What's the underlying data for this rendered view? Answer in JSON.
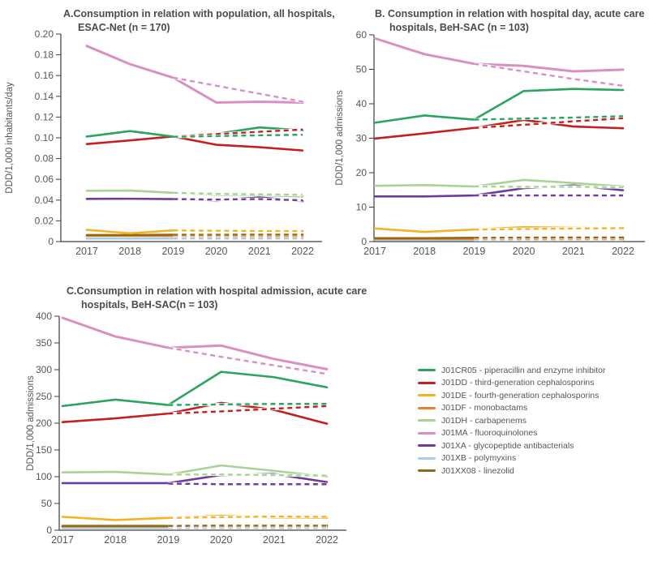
{
  "page": {
    "background": "#ffffff"
  },
  "colors": {
    "J01CR05": "#2aa45f",
    "J01DD": "#c3201f",
    "J01DE": "#f5b324",
    "J01DF": "#ee7e2d",
    "J01DH": "#a7d395",
    "J01MA": "#d98fc3",
    "J01XA": "#6e3a9c",
    "J01XB": "#a9cde9",
    "J01XX08": "#8e6c15",
    "axis_line": "#3d3d3d",
    "axis_text": "#5c564e",
    "title_text": "#4f4a44"
  },
  "legend": {
    "items": [
      {
        "code": "J01CR05",
        "label": "J01CR05 - piperacillin and enzyme inhibitor"
      },
      {
        "code": "J01DD",
        "label": "J01DD - third-generation cephalosporins"
      },
      {
        "code": "J01DE",
        "label": "J01DE - fourth-generation cephalosporins"
      },
      {
        "code": "J01DF",
        "label": "J01DF - monobactams"
      },
      {
        "code": "J01DH",
        "label": "J01DH - carbapenems"
      },
      {
        "code": "J01MA",
        "label": "J01MA - fluoroquinolones"
      },
      {
        "code": "J01XA",
        "label": "J01XA - glycopeptide antibacterials"
      },
      {
        "code": "J01XB",
        "label": "J01XB - polymyxins"
      },
      {
        "code": "J01XX08",
        "label": "J01XX08 - linezolid"
      }
    ]
  },
  "chart_data": [
    {
      "id": "A",
      "type": "line",
      "title_lines": [
        "A.Consumption in relation with population, all hospitals,",
        "ESAC-Net (n = 170)"
      ],
      "ylabel": "DDD/1,000 inhabitants/day",
      "years": [
        2017,
        2018,
        2019,
        2020,
        2021,
        2022
      ],
      "x_labels": [
        "2017",
        "2018",
        "2019",
        "2020",
        "2021",
        "2022"
      ],
      "ylim": [
        0,
        0.2
      ],
      "yticks": [
        "0.20",
        "0.18",
        "0.16",
        "0.14",
        "0.12",
        "0.10",
        "0.08",
        "0.06",
        "0.04",
        "0.02",
        "0"
      ],
      "series": [
        {
          "code": "J01XB",
          "values": [
            0.003,
            0.003,
            0.003,
            0.003,
            0.003,
            0.003
          ]
        },
        {
          "code": "J01DF",
          "values": [
            0.0056,
            0.0056,
            0.0055,
            0.0053,
            0.0052,
            0.0052
          ]
        },
        {
          "code": "J01XX08",
          "values": [
            0.0063,
            0.0063,
            0.0066,
            0.0068,
            0.0068,
            0.0068
          ]
        },
        {
          "code": "J01DE",
          "values": [
            0.0113,
            0.008,
            0.0108,
            0.01,
            0.01,
            0.01
          ]
        },
        {
          "code": "J01DH",
          "values": [
            0.049,
            0.0492,
            0.047,
            0.0452,
            0.0448,
            0.0435
          ]
        },
        {
          "code": "J01XA",
          "values": [
            0.0412,
            0.0413,
            0.041,
            0.0398,
            0.0425,
            0.039
          ]
        },
        {
          "code": "J01DD",
          "values": [
            0.094,
            0.0975,
            0.1013,
            0.0933,
            0.091,
            0.0878
          ]
        },
        {
          "code": "J01CR05",
          "values": [
            0.1012,
            0.1065,
            0.1012,
            0.1038,
            0.11,
            0.1072
          ]
        },
        {
          "code": "J01MA",
          "values": [
            0.1885,
            0.171,
            0.158,
            0.134,
            0.1348,
            0.134
          ]
        }
      ],
      "projected": [
        {
          "code": "J01XB",
          "x_start_index": 2,
          "values": [
            0.003,
            0.003,
            0.003,
            0.003
          ]
        },
        {
          "code": "J01DF",
          "x_start_index": 2,
          "values": [
            0.0055,
            0.0054,
            0.0053,
            0.0052
          ]
        },
        {
          "code": "J01XX08",
          "x_start_index": 2,
          "values": [
            0.0066,
            0.0066,
            0.0067,
            0.0067
          ]
        },
        {
          "code": "J01DE",
          "x_start_index": 2,
          "values": [
            0.0108,
            0.0104,
            0.0102,
            0.0101
          ]
        },
        {
          "code": "J01DH",
          "x_start_index": 2,
          "values": [
            0.047,
            0.046,
            0.0455,
            0.045
          ]
        },
        {
          "code": "J01XA",
          "x_start_index": 2,
          "values": [
            0.041,
            0.0405,
            0.041,
            0.0398
          ]
        },
        {
          "code": "J01DD",
          "x_start_index": 2,
          "values": [
            0.1013,
            0.1036,
            0.1058,
            0.108
          ]
        },
        {
          "code": "J01CR05",
          "x_start_index": 2,
          "values": [
            0.101,
            0.1017,
            0.1024,
            0.103
          ]
        },
        {
          "code": "J01MA",
          "x_start_index": 2,
          "values": [
            0.158,
            0.1502,
            0.1425,
            0.1348
          ]
        }
      ]
    },
    {
      "id": "B",
      "type": "line",
      "title_lines": [
        "B. Consumption in relation with hospital day, acute care",
        "hospitals, BeH-SAC (n = 103)"
      ],
      "ylabel": "DDD/1,000 admissions",
      "years": [
        2017,
        2018,
        2019,
        2020,
        2021,
        2022
      ],
      "x_labels": [
        "2017",
        "2018",
        "2019",
        "2020",
        "2021",
        "2022"
      ],
      "ylim": [
        0,
        60
      ],
      "yticks": [
        "60",
        "50",
        "40",
        "30",
        "20",
        "10",
        "0"
      ],
      "series": [
        {
          "code": "J01XB",
          "values": [
            0.5,
            0.5,
            0.5,
            0.6,
            0.6,
            0.6
          ]
        },
        {
          "code": "J01DF",
          "values": [
            0.8,
            0.8,
            0.8,
            0.75,
            0.7,
            0.7
          ]
        },
        {
          "code": "J01XX08",
          "values": [
            1.0,
            1.0,
            1.1,
            1.25,
            1.2,
            1.2
          ]
        },
        {
          "code": "J01DE",
          "values": [
            3.8,
            2.8,
            3.5,
            4.2,
            4.0,
            3.9
          ]
        },
        {
          "code": "J01DH",
          "values": [
            16.2,
            16.4,
            16.0,
            17.9,
            17.0,
            16.0
          ]
        },
        {
          "code": "J01XA",
          "values": [
            13.1,
            13.1,
            13.4,
            15.5,
            16.3,
            14.9
          ]
        },
        {
          "code": "J01DD",
          "values": [
            29.9,
            31.4,
            33.0,
            35.3,
            33.4,
            32.9
          ]
        },
        {
          "code": "J01CR05",
          "values": [
            34.5,
            36.6,
            35.4,
            43.7,
            44.3,
            44.0
          ]
        },
        {
          "code": "J01MA",
          "values": [
            59.0,
            54.4,
            51.6,
            51.0,
            49.4,
            49.9
          ]
        }
      ],
      "projected": [
        {
          "code": "J01XB",
          "x_start_index": 2,
          "values": [
            0.5,
            0.5,
            0.55,
            0.55
          ]
        },
        {
          "code": "J01DF",
          "x_start_index": 2,
          "values": [
            0.8,
            0.8,
            0.8,
            0.8
          ]
        },
        {
          "code": "J01XX08",
          "x_start_index": 2,
          "values": [
            1.1,
            1.15,
            1.2,
            1.2
          ]
        },
        {
          "code": "J01DE",
          "x_start_index": 2,
          "values": [
            3.5,
            3.65,
            3.8,
            3.9
          ]
        },
        {
          "code": "J01DH",
          "x_start_index": 2,
          "values": [
            16.0,
            15.9,
            15.9,
            15.8
          ]
        },
        {
          "code": "J01XA",
          "x_start_index": 2,
          "values": [
            13.4,
            13.4,
            13.4,
            13.4
          ]
        },
        {
          "code": "J01DD",
          "x_start_index": 2,
          "values": [
            33.0,
            33.9,
            34.9,
            35.8
          ]
        },
        {
          "code": "J01CR05",
          "x_start_index": 2,
          "values": [
            35.4,
            35.7,
            36.0,
            36.4
          ]
        },
        {
          "code": "J01MA",
          "x_start_index": 2,
          "values": [
            51.6,
            49.4,
            47.2,
            45.2
          ]
        }
      ]
    },
    {
      "id": "C",
      "type": "line",
      "title_lines": [
        "C.Consumption in relation with hospital admission, acute care",
        "hospitals, BeH-SAC(n = 103)"
      ],
      "ylabel": "DDD/1,000 admissions",
      "years": [
        2017,
        2018,
        2019,
        2020,
        2021,
        2022
      ],
      "x_labels": [
        "2017",
        "2018",
        "2019",
        "2020",
        "2021",
        "2022"
      ],
      "ylim": [
        0,
        400
      ],
      "yticks": [
        "400",
        "350",
        "300",
        "250",
        "200",
        "150",
        "100",
        "50",
        "0"
      ],
      "series": [
        {
          "code": "J01XB",
          "values": [
            4,
            4,
            4,
            4,
            4,
            4
          ]
        },
        {
          "code": "J01DF",
          "values": [
            7,
            7,
            7,
            7,
            7,
            7.5
          ]
        },
        {
          "code": "J01XX08",
          "values": [
            8,
            8,
            8,
            9,
            9,
            9
          ]
        },
        {
          "code": "J01DE",
          "values": [
            25,
            19,
            23,
            27,
            24,
            23
          ]
        },
        {
          "code": "J01DH",
          "values": [
            108,
            109,
            104,
            121,
            111,
            100
          ]
        },
        {
          "code": "J01XA",
          "values": [
            88,
            88,
            88,
            103,
            105,
            90
          ]
        },
        {
          "code": "J01DD",
          "values": [
            202,
            209,
            218,
            238,
            225,
            199
          ]
        },
        {
          "code": "J01CR05",
          "values": [
            232,
            244,
            234,
            296,
            286,
            267
          ]
        },
        {
          "code": "J01MA",
          "values": [
            397,
            362,
            341,
            345,
            320,
            301
          ]
        }
      ],
      "projected": [
        {
          "code": "J01XB",
          "x_start_index": 2,
          "values": [
            4,
            4,
            4,
            4
          ]
        },
        {
          "code": "J01DF",
          "x_start_index": 2,
          "values": [
            7,
            7,
            7,
            7
          ]
        },
        {
          "code": "J01XX08",
          "x_start_index": 2,
          "values": [
            8,
            8.5,
            8.5,
            8.5
          ]
        },
        {
          "code": "J01DE",
          "x_start_index": 2,
          "values": [
            23,
            24.5,
            25.5,
            25
          ]
        },
        {
          "code": "J01DH",
          "x_start_index": 2,
          "values": [
            104,
            104,
            103,
            102
          ]
        },
        {
          "code": "J01XA",
          "x_start_index": 2,
          "values": [
            87,
            86,
            86,
            86
          ]
        },
        {
          "code": "J01DD",
          "x_start_index": 2,
          "values": [
            218,
            222,
            227,
            232
          ]
        },
        {
          "code": "J01CR05",
          "x_start_index": 2,
          "values": [
            234,
            235,
            236,
            236
          ]
        },
        {
          "code": "J01MA",
          "x_start_index": 2,
          "values": [
            341,
            324,
            308,
            292
          ]
        }
      ]
    }
  ]
}
